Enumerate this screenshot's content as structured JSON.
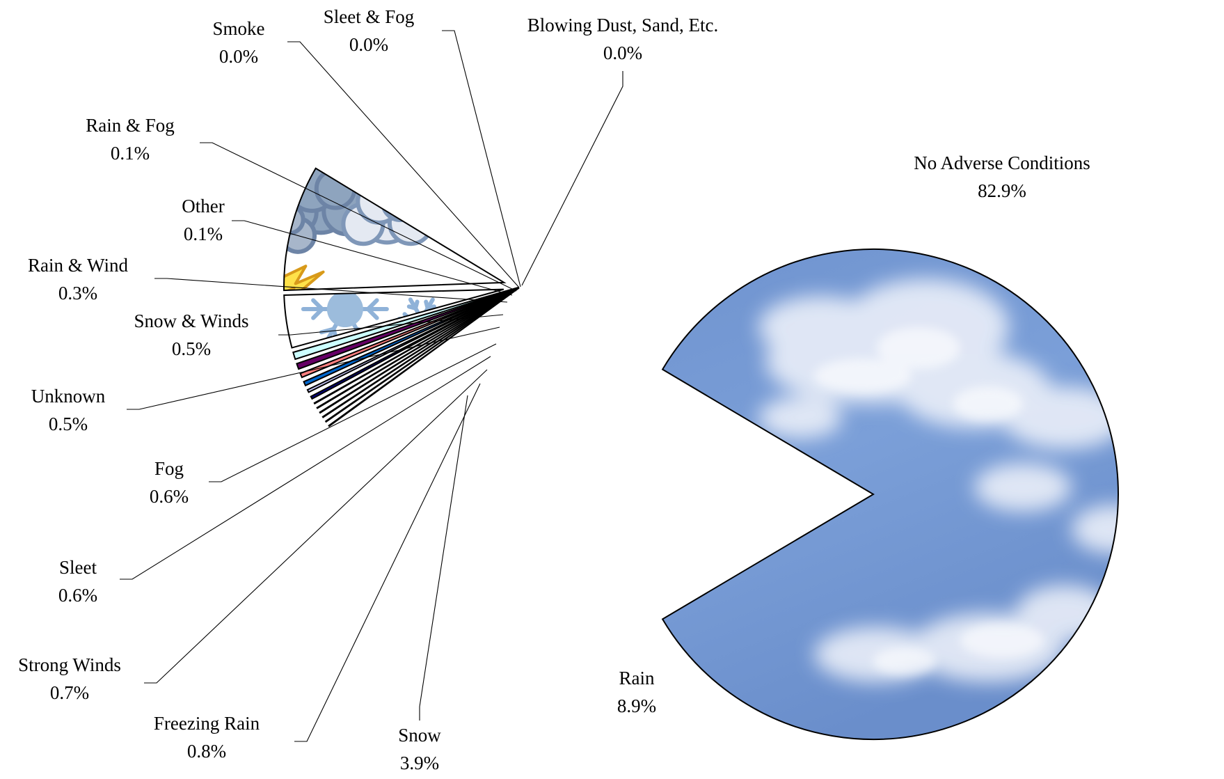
{
  "chart_data": {
    "type": "pie",
    "title": "",
    "slices": [
      {
        "label": "No Adverse Conditions",
        "value": 82.9,
        "value_label": "82.9%",
        "fill": "sky-clouds"
      },
      {
        "label": "Rain",
        "value": 8.9,
        "value_label": "8.9%",
        "fill": "storm-clouds"
      },
      {
        "label": "Snow",
        "value": 3.9,
        "value_label": "3.9%",
        "fill": "snowflake"
      },
      {
        "label": "Freezing Rain",
        "value": 0.8,
        "value_label": "0.8%",
        "color": "#ccffff"
      },
      {
        "label": "Strong Winds",
        "value": 0.7,
        "value_label": "0.7%",
        "color": "#660066"
      },
      {
        "label": "Sleet",
        "value": 0.6,
        "value_label": "0.6%",
        "color": "#ff8080"
      },
      {
        "label": "Fog",
        "value": 0.6,
        "value_label": "0.6%",
        "color": "#0066cc"
      },
      {
        "label": "Unknown",
        "value": 0.5,
        "value_label": "0.5%",
        "color": "#ccccff"
      },
      {
        "label": "Snow & Winds",
        "value": 0.5,
        "value_label": "0.5%",
        "color": "#000080"
      },
      {
        "label": "Rain & Wind",
        "value": 0.3,
        "value_label": "0.3%",
        "color": "#ff00ff"
      },
      {
        "label": "Other",
        "value": 0.1,
        "value_label": "0.1%",
        "color": "#ffff00"
      },
      {
        "label": "Rain & Fog",
        "value": 0.1,
        "value_label": "0.1%",
        "color": "#00ffff"
      },
      {
        "label": "Smoke",
        "value": 0.0,
        "value_label": "0.0%",
        "color": "#800000"
      },
      {
        "label": "Sleet & Fog",
        "value": 0.0,
        "value_label": "0.0%",
        "color": "#008080"
      },
      {
        "label": "Blowing Dust, Sand, Etc.",
        "value": 0.0,
        "value_label": "0.0%",
        "color": "#0000ff"
      }
    ],
    "legend": "none",
    "labels": "outside with leader lines"
  }
}
